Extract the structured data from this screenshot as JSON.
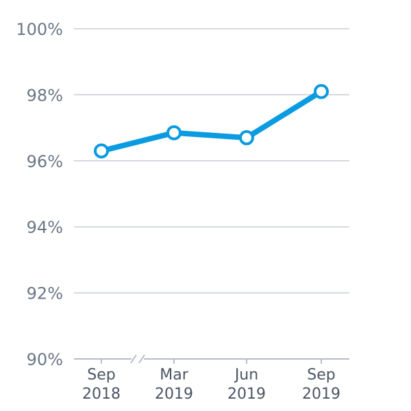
{
  "chart_data": {
    "type": "line",
    "categories": [
      "Sep 2018",
      "Mar 2019",
      "Jun 2019",
      "Sep 2019"
    ],
    "x_labels": [
      {
        "line1": "Sep",
        "line2": "2018"
      },
      {
        "line1": "Mar",
        "line2": "2019"
      },
      {
        "line1": "Jun",
        "line2": "2019"
      },
      {
        "line1": "Sep",
        "line2": "2019"
      }
    ],
    "values": [
      96.3,
      96.85,
      96.7,
      98.1
    ],
    "ylim": [
      90,
      100
    ],
    "yticks": [
      90,
      92,
      94,
      96,
      98,
      100
    ],
    "ytick_labels": [
      "90%",
      "92%",
      "94%",
      "96%",
      "98%",
      "100%"
    ],
    "axis_break": "between Sep 2018 and Mar 2019",
    "grid": true,
    "title": "",
    "xlabel": "",
    "ylabel": "",
    "colors": {
      "line": "#0a9be0",
      "marker_fill": "#ffffff",
      "grid": "#c7cdd4",
      "tick_text": "#6b7785"
    }
  }
}
